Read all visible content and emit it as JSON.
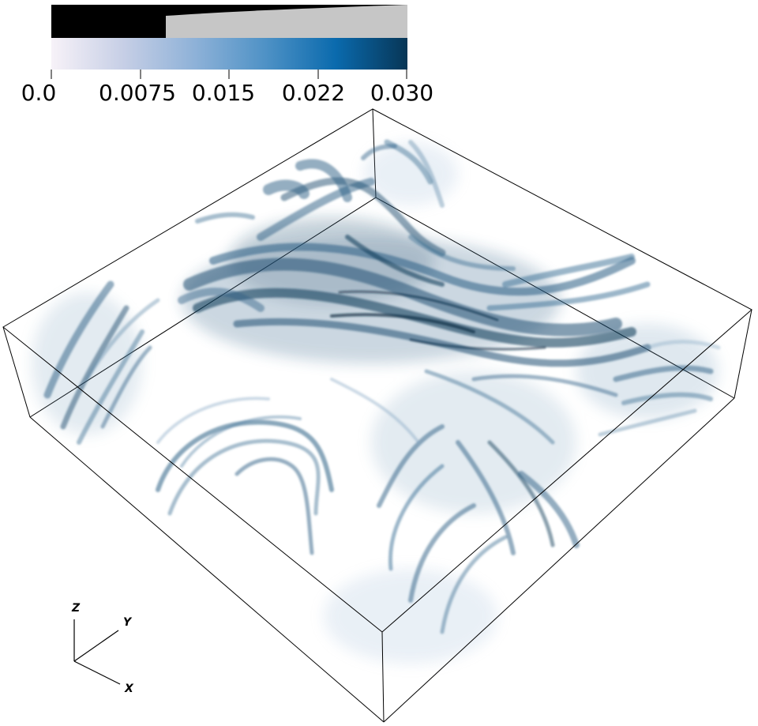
{
  "colorbar": {
    "tick_labels": [
      "0.0",
      "0.0075",
      "0.015",
      "0.022",
      "0.030"
    ],
    "min": 0.0,
    "max": 0.03,
    "gradient_colors": [
      "#f7f2f8",
      "#c7cfe6",
      "#8fb2d8",
      "#4f92c6",
      "#0a6aad",
      "#083656"
    ],
    "opacity_ramp_color": "#c6c6c6"
  },
  "axes_triad": {
    "x": "X",
    "y": "Y",
    "z": "Z"
  },
  "volume": {
    "base_color": "#2a5e84",
    "dark_color": "#0d2c44"
  }
}
